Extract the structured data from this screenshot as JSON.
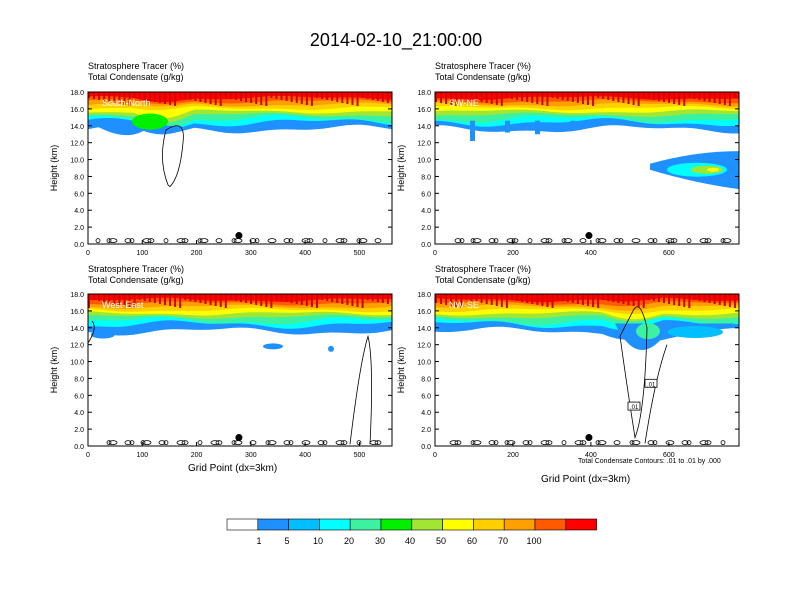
{
  "title": "2014-02-10_21:00:00",
  "colors": {
    "levels": [
      "#ffffff",
      "#1e90ff",
      "#00bfff",
      "#00ffff",
      "#3cf2a0",
      "#00f000",
      "#a0e632",
      "#ffff00",
      "#ffd000",
      "#ffa000",
      "#ff5a00",
      "#ff0000"
    ]
  },
  "colorbar": {
    "labels": [
      "1",
      "5",
      "10",
      "20",
      "30",
      "40",
      "50",
      "60",
      "70",
      "100"
    ]
  },
  "footnote": "Total Condensate Contours: .01 to .01 by .000",
  "xaxis_label": "Grid Point (dx=3km)",
  "chart_data": [
    {
      "type": "heatmap",
      "title_lines": [
        "Stratosphere Tracer   (%)",
        "Total Condensate   (g/kg)"
      ],
      "panel_label": "South-North",
      "ylabel": "Height (km)",
      "xlim": [
        0,
        560
      ],
      "ylim": [
        0,
        18
      ],
      "xticks": [
        0,
        100,
        200,
        300,
        400,
        500
      ],
      "yticks": [
        "0.0",
        "2.0",
        "4.0",
        "6.0",
        "8.0",
        "10.0",
        "12.0",
        "14.0",
        "16.0",
        "18.0"
      ],
      "marker_x": 278,
      "contour_label": ""
    },
    {
      "type": "heatmap",
      "title_lines": [
        "Stratosphere Tracer   (%)",
        "Total Condensate   (g/kg)"
      ],
      "panel_label": "SW-NE",
      "ylabel": "Height (km)",
      "xlim": [
        0,
        780
      ],
      "ylim": [
        0,
        18
      ],
      "xticks": [
        0,
        200,
        400,
        600
      ],
      "yticks": [
        "0.0",
        "2.0",
        "4.0",
        "6.0",
        "8.0",
        "10.0",
        "12.0",
        "14.0",
        "16.0",
        "18.0"
      ],
      "marker_x": 395,
      "contour_label": ""
    },
    {
      "type": "heatmap",
      "title_lines": [
        "Stratosphere Tracer   (%)",
        "Total Condensate   (g/kg)"
      ],
      "panel_label": "West-East",
      "ylabel": "Height (km)",
      "xlim": [
        0,
        560
      ],
      "ylim": [
        0,
        18
      ],
      "xticks": [
        0,
        100,
        200,
        300,
        400,
        500
      ],
      "yticks": [
        "0.0",
        "2.0",
        "4.0",
        "6.0",
        "8.0",
        "10.0",
        "12.0",
        "14.0",
        "16.0",
        "18.0"
      ],
      "marker_x": 278,
      "contour_label": ""
    },
    {
      "type": "heatmap",
      "title_lines": [
        "Stratosphere Tracer   (%)",
        "Total Condensate   (g/kg)"
      ],
      "panel_label": "NW-SE",
      "ylabel": "Height (km)",
      "xlim": [
        0,
        780
      ],
      "ylim": [
        0,
        18
      ],
      "xticks": [
        0,
        200,
        400,
        600
      ],
      "yticks": [
        "0.0",
        "2.0",
        "4.0",
        "6.0",
        "8.0",
        "10.0",
        "12.0",
        "14.0",
        "16.0",
        "18.0"
      ],
      "marker_x": 395,
      "contour_label": ".01"
    }
  ]
}
